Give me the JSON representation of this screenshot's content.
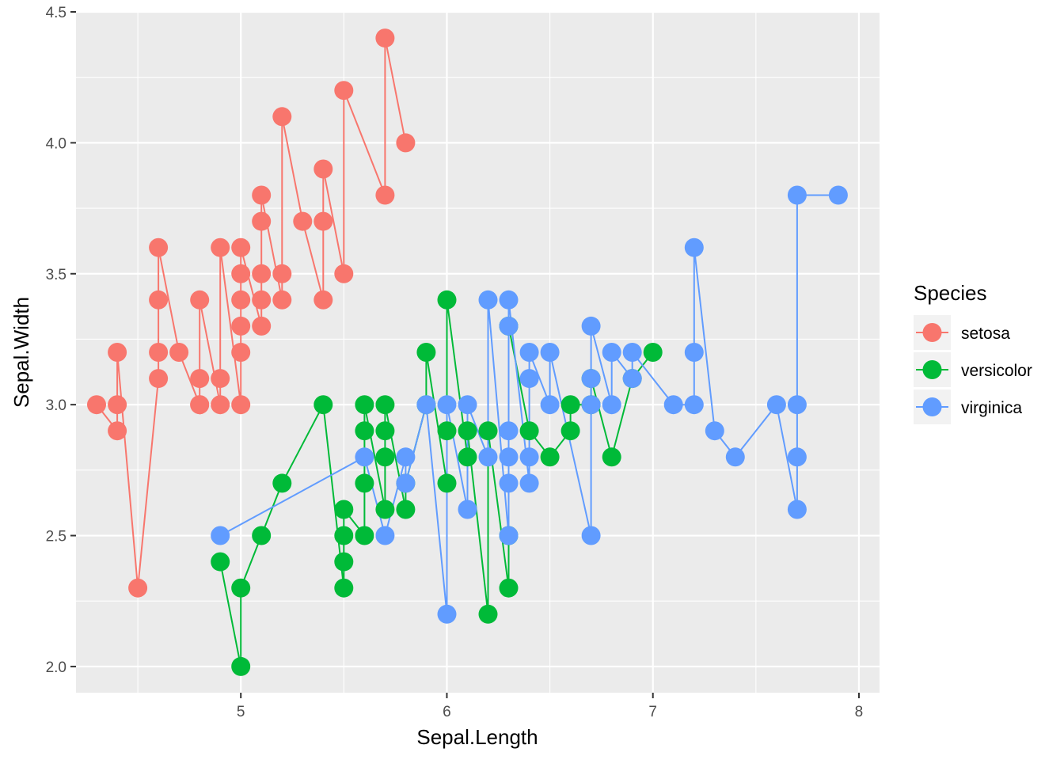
{
  "chart_data": {
    "type": "line",
    "xlabel": "Sepal.Length",
    "ylabel": "Sepal.Width",
    "xlim": [
      4.2,
      8.1
    ],
    "ylim": [
      1.9,
      4.5
    ],
    "x_ticks": [
      5,
      6,
      7,
      8
    ],
    "x_tick_labels": [
      "5",
      "6",
      "7",
      "8"
    ],
    "y_ticks": [
      2.0,
      2.5,
      3.0,
      3.5,
      4.0,
      4.5
    ],
    "y_tick_labels": [
      "2.0",
      "2.5",
      "3.0",
      "3.5",
      "4.0",
      "4.5"
    ],
    "grid": true,
    "markers": "points",
    "legend": {
      "title": "Species",
      "position": "right",
      "entries": [
        "setosa",
        "versicolor",
        "virginica"
      ]
    },
    "series": [
      {
        "name": "setosa",
        "color": "#F8766D",
        "points": [
          [
            4.3,
            3.0
          ],
          [
            4.4,
            2.9
          ],
          [
            4.4,
            3.0
          ],
          [
            4.4,
            3.2
          ],
          [
            4.5,
            2.3
          ],
          [
            4.6,
            3.1
          ],
          [
            4.6,
            3.2
          ],
          [
            4.6,
            3.4
          ],
          [
            4.6,
            3.6
          ],
          [
            4.7,
            3.2
          ],
          [
            4.8,
            3.0
          ],
          [
            4.8,
            3.0
          ],
          [
            4.8,
            3.1
          ],
          [
            4.8,
            3.4
          ],
          [
            4.9,
            3.0
          ],
          [
            4.9,
            3.1
          ],
          [
            4.9,
            3.6
          ],
          [
            5.0,
            3.0
          ],
          [
            5.0,
            3.2
          ],
          [
            5.0,
            3.3
          ],
          [
            5.0,
            3.4
          ],
          [
            5.0,
            3.5
          ],
          [
            5.0,
            3.6
          ],
          [
            5.1,
            3.3
          ],
          [
            5.1,
            3.4
          ],
          [
            5.1,
            3.5
          ],
          [
            5.1,
            3.7
          ],
          [
            5.1,
            3.8
          ],
          [
            5.2,
            3.4
          ],
          [
            5.2,
            3.5
          ],
          [
            5.2,
            4.1
          ],
          [
            5.3,
            3.7
          ],
          [
            5.4,
            3.4
          ],
          [
            5.4,
            3.7
          ],
          [
            5.4,
            3.9
          ],
          [
            5.5,
            3.5
          ],
          [
            5.5,
            4.2
          ],
          [
            5.7,
            3.8
          ],
          [
            5.7,
            4.4
          ],
          [
            5.8,
            4.0
          ]
        ]
      },
      {
        "name": "versicolor",
        "color": "#00BA38",
        "points": [
          [
            4.9,
            2.4
          ],
          [
            5.0,
            2.0
          ],
          [
            5.0,
            2.3
          ],
          [
            5.1,
            2.5
          ],
          [
            5.2,
            2.7
          ],
          [
            5.4,
            3.0
          ],
          [
            5.5,
            2.3
          ],
          [
            5.5,
            2.4
          ],
          [
            5.5,
            2.5
          ],
          [
            5.5,
            2.6
          ],
          [
            5.6,
            2.5
          ],
          [
            5.6,
            2.7
          ],
          [
            5.6,
            2.9
          ],
          [
            5.6,
            3.0
          ],
          [
            5.7,
            2.6
          ],
          [
            5.7,
            2.8
          ],
          [
            5.7,
            2.9
          ],
          [
            5.7,
            3.0
          ],
          [
            5.8,
            2.6
          ],
          [
            5.8,
            2.7
          ],
          [
            5.9,
            3.0
          ],
          [
            5.9,
            3.2
          ],
          [
            6.0,
            2.7
          ],
          [
            6.0,
            2.9
          ],
          [
            6.0,
            3.4
          ],
          [
            6.1,
            2.8
          ],
          [
            6.1,
            2.9
          ],
          [
            6.2,
            2.2
          ],
          [
            6.2,
            2.9
          ],
          [
            6.3,
            2.3
          ],
          [
            6.3,
            2.5
          ],
          [
            6.3,
            3.3
          ],
          [
            6.4,
            2.9
          ],
          [
            6.5,
            2.8
          ],
          [
            6.6,
            2.9
          ],
          [
            6.6,
            3.0
          ],
          [
            6.7,
            3.0
          ],
          [
            6.7,
            3.1
          ],
          [
            6.8,
            2.8
          ],
          [
            6.9,
            3.1
          ],
          [
            7.0,
            3.2
          ]
        ]
      },
      {
        "name": "virginica",
        "color": "#619CFF",
        "points": [
          [
            4.9,
            2.5
          ],
          [
            5.6,
            2.8
          ],
          [
            5.7,
            2.5
          ],
          [
            5.8,
            2.8
          ],
          [
            5.8,
            2.7
          ],
          [
            5.9,
            3.0
          ],
          [
            6.0,
            2.2
          ],
          [
            6.0,
            3.0
          ],
          [
            6.1,
            2.6
          ],
          [
            6.1,
            3.0
          ],
          [
            6.2,
            2.8
          ],
          [
            6.2,
            3.4
          ],
          [
            6.3,
            2.5
          ],
          [
            6.3,
            2.7
          ],
          [
            6.3,
            2.8
          ],
          [
            6.3,
            2.9
          ],
          [
            6.3,
            3.3
          ],
          [
            6.3,
            3.4
          ],
          [
            6.4,
            2.7
          ],
          [
            6.4,
            2.8
          ],
          [
            6.4,
            3.1
          ],
          [
            6.4,
            3.2
          ],
          [
            6.5,
            3.0
          ],
          [
            6.5,
            3.2
          ],
          [
            6.7,
            2.5
          ],
          [
            6.7,
            3.0
          ],
          [
            6.7,
            3.1
          ],
          [
            6.7,
            3.3
          ],
          [
            6.8,
            3.0
          ],
          [
            6.8,
            3.2
          ],
          [
            6.9,
            3.1
          ],
          [
            6.9,
            3.2
          ],
          [
            7.1,
            3.0
          ],
          [
            7.2,
            3.0
          ],
          [
            7.2,
            3.2
          ],
          [
            7.2,
            3.6
          ],
          [
            7.3,
            2.9
          ],
          [
            7.4,
            2.8
          ],
          [
            7.6,
            3.0
          ],
          [
            7.7,
            2.6
          ],
          [
            7.7,
            2.8
          ],
          [
            7.7,
            3.0
          ],
          [
            7.7,
            3.8
          ],
          [
            7.9,
            3.8
          ]
        ]
      }
    ]
  }
}
